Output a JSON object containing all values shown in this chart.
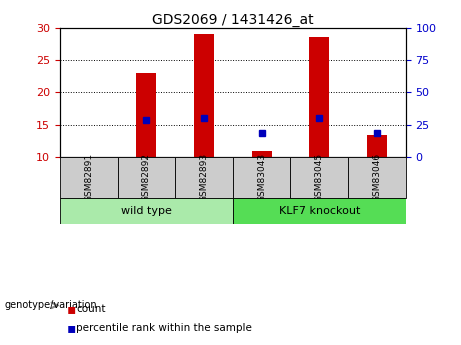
{
  "title": "GDS2069 / 1431426_at",
  "samples": [
    "GSM82891",
    "GSM82892",
    "GSM82893",
    "GSM83043",
    "GSM83045",
    "GSM83046"
  ],
  "count_values": [
    10.05,
    23.0,
    29.0,
    11.0,
    28.5,
    13.5
  ],
  "percentile_left_vals": [
    null,
    15.8,
    16.1,
    13.7,
    16.0,
    13.8
  ],
  "ylim_left": [
    10,
    30
  ],
  "ylim_right": [
    0,
    100
  ],
  "yticks_left": [
    10,
    15,
    20,
    25,
    30
  ],
  "yticks_right": [
    0,
    25,
    50,
    75,
    100
  ],
  "group1_label": "wild type",
  "group2_label": "KLF7 knockout",
  "bar_color": "#cc0000",
  "dot_color": "#0000bb",
  "group1_color": "#aaeaaa",
  "group2_color": "#55dd55",
  "label_color_left": "#cc0000",
  "label_color_right": "#0000cc",
  "legend_count_label": "count",
  "legend_percentile_label": "percentile rank within the sample",
  "baseline": 10,
  "bar_width": 0.35,
  "sample_box_color": "#cccccc",
  "genotype_label": "genotype/variation"
}
